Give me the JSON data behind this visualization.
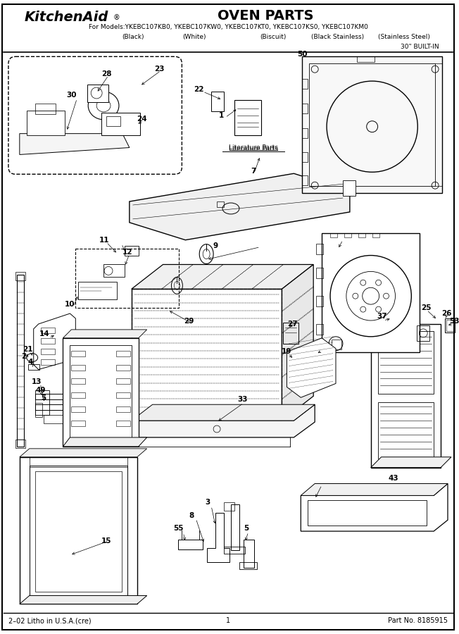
{
  "title": "OVEN PARTS",
  "brand": "KitchenAid",
  "models_line": "For Models:YKEBC107KB0, YKEBC107KW0, YKEBC107KT0, YKEBC107KS0, YKEBC107KM0",
  "colors_line": "            (Black)           (White)              (Biscuit)     (Black Stainless)  (Stainless Steel)",
  "built_in": "30\" BUILT-IN",
  "footer_left": "2–02 Litho in U.S.A.(cre)",
  "footer_center": "1",
  "footer_right": "Part No. 8185915",
  "bg_color": "#ffffff",
  "text_color": "#000000",
  "fig_width": 6.52,
  "fig_height": 9.0,
  "dpi": 100
}
